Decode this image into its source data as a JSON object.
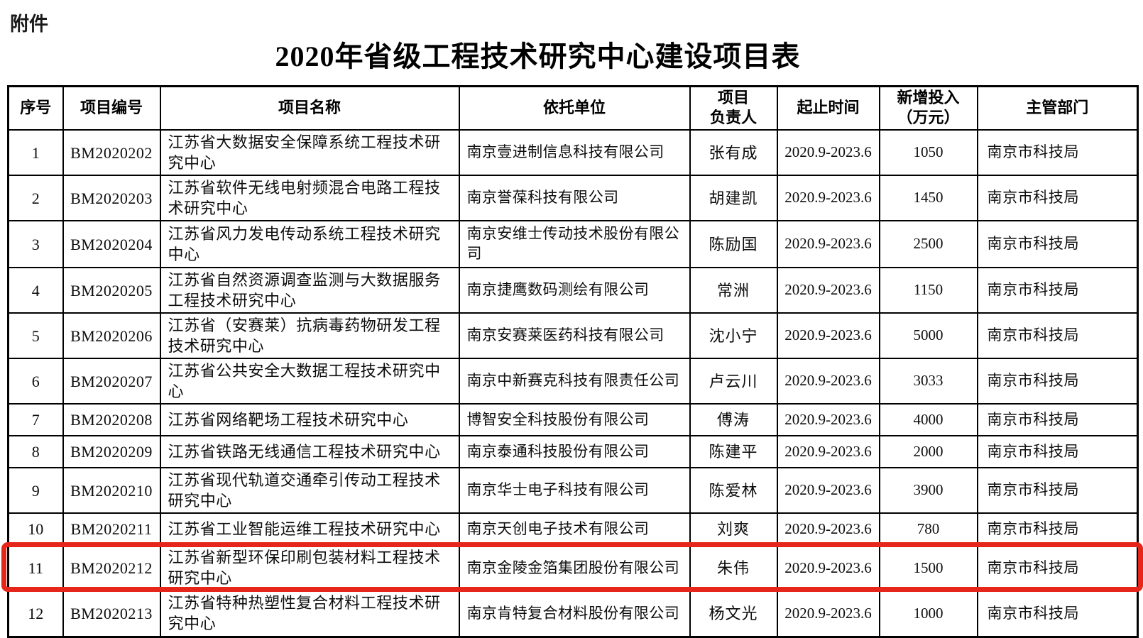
{
  "page": {
    "attachment_label": "附件",
    "title": "2020年省级工程技术研究中心建设项目表"
  },
  "highlight": {
    "color": "#e6261b",
    "highlighted_row_index": "11"
  },
  "table": {
    "columns": [
      {
        "key": "index",
        "label": "序号"
      },
      {
        "key": "code",
        "label": "项目编号"
      },
      {
        "key": "name",
        "label": "项目名称"
      },
      {
        "key": "org",
        "label": "依托单位"
      },
      {
        "key": "leader",
        "label": "项目\n负责人"
      },
      {
        "key": "period",
        "label": "起止时间"
      },
      {
        "key": "investment",
        "label": "新增投入\n（万元）"
      },
      {
        "key": "department",
        "label": "主管部门"
      }
    ],
    "rows": [
      {
        "index": "1",
        "code": "BM2020202",
        "name": "江苏省大数据安全保障系统工程技术研究中心",
        "org": "南京壹进制信息科技有限公司",
        "leader": "张有成",
        "period": "2020.9-2023.6",
        "investment": "1050",
        "department": "南京市科技局",
        "highlighted": false
      },
      {
        "index": "2",
        "code": "BM2020203",
        "name": "江苏省软件无线电射频混合电路工程技术研究中心",
        "org": "南京誉葆科技有限公司",
        "leader": "胡建凯",
        "period": "2020.9-2023.6",
        "investment": "1450",
        "department": "南京市科技局",
        "highlighted": false
      },
      {
        "index": "3",
        "code": "BM2020204",
        "name": "江苏省风力发电传动系统工程技术研究中心",
        "org": "南京安维士传动技术股份有限公司",
        "leader": "陈励国",
        "period": "2020.9-2023.6",
        "investment": "2500",
        "department": "南京市科技局",
        "highlighted": false
      },
      {
        "index": "4",
        "code": "BM2020205",
        "name": "江苏省自然资源调查监测与大数据服务工程技术研究中心",
        "org": "南京捷鹰数码测绘有限公司",
        "leader": "常洲",
        "period": "2020.9-2023.6",
        "investment": "1150",
        "department": "南京市科技局",
        "highlighted": false
      },
      {
        "index": "5",
        "code": "BM2020206",
        "name": "江苏省（安赛莱）抗病毒药物研发工程技术研究中心",
        "org": "南京安赛莱医药科技有限公司",
        "leader": "沈小宁",
        "period": "2020.9-2023.6",
        "investment": "5000",
        "department": "南京市科技局",
        "highlighted": false
      },
      {
        "index": "6",
        "code": "BM2020207",
        "name": "江苏省公共安全大数据工程技术研究中心",
        "org": "南京中新赛克科技有限责任公司",
        "leader": "卢云川",
        "period": "2020.9-2023.6",
        "investment": "3033",
        "department": "南京市科技局",
        "highlighted": false
      },
      {
        "index": "7",
        "code": "BM2020208",
        "name": "江苏省网络靶场工程技术研究中心",
        "org": "博智安全科技股份有限公司",
        "leader": "傅涛",
        "period": "2020.9-2023.6",
        "investment": "4000",
        "department": "南京市科技局",
        "highlighted": false
      },
      {
        "index": "8",
        "code": "BM2020209",
        "name": "江苏省铁路无线通信工程技术研究中心",
        "org": "南京泰通科技股份有限公司",
        "leader": "陈建平",
        "period": "2020.9-2023.6",
        "investment": "2000",
        "department": "南京市科技局",
        "highlighted": false
      },
      {
        "index": "9",
        "code": "BM2020210",
        "name": "江苏省现代轨道交通牵引传动工程技术研究中心",
        "org": "南京华士电子科技有限公司",
        "leader": "陈爱林",
        "period": "2020.9-2023.6",
        "investment": "3900",
        "department": "南京市科技局",
        "highlighted": false
      },
      {
        "index": "10",
        "code": "BM2020211",
        "name": "江苏省工业智能运维工程技术研究中心",
        "org": "南京天创电子技术有限公司",
        "leader": "刘爽",
        "period": "2020.9-2023.6",
        "investment": "780",
        "department": "南京市科技局",
        "highlighted": false
      },
      {
        "index": "11",
        "code": "BM2020212",
        "name": "江苏省新型环保印刷包装材料工程技术研究中心",
        "org": "南京金陵金箔集团股份有限公司",
        "leader": "朱伟",
        "period": "2020.9-2023.6",
        "investment": "1500",
        "department": "南京市科技局",
        "highlighted": true
      },
      {
        "index": "12",
        "code": "BM2020213",
        "name": "江苏省特种热塑性复合材料工程技术研究中心",
        "org": "南京肯特复合材料股份有限公司",
        "leader": "杨文光",
        "period": "2020.9-2023.6",
        "investment": "1000",
        "department": "南京市科技局",
        "highlighted": false
      }
    ]
  }
}
